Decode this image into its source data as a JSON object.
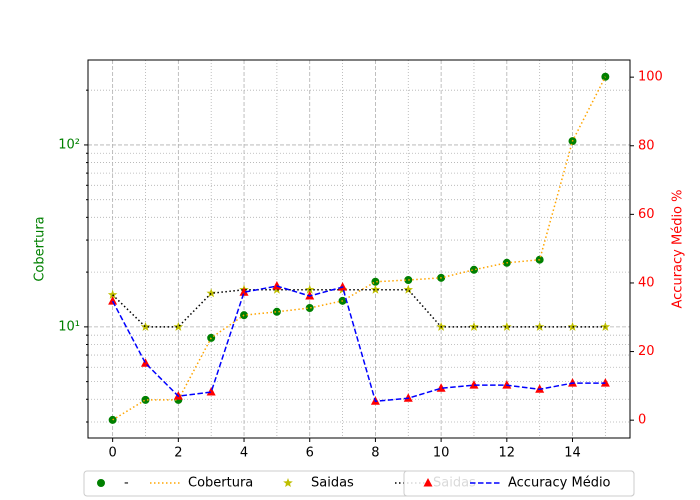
{
  "chart_data": {
    "type": "line",
    "x": [
      0,
      1,
      2,
      3,
      4,
      5,
      6,
      7,
      8,
      9,
      10,
      11,
      12,
      13,
      14,
      15
    ],
    "xlim": [
      -0.75,
      15.75
    ],
    "xticks": [
      0,
      2,
      4,
      6,
      8,
      10,
      12,
      14
    ],
    "xminorticks": [
      1,
      3,
      5,
      7,
      9,
      11,
      13,
      15
    ],
    "ylim": [
      2.45,
      293
    ],
    "ylog": true,
    "yticks": [
      {
        "value": 10,
        "label": "10¹"
      },
      {
        "value": 100,
        "label": "10²"
      }
    ],
    "yminorticks": [
      3,
      4,
      5,
      6,
      7,
      8,
      9,
      20,
      30,
      40,
      50,
      60,
      70,
      80,
      90,
      200
    ],
    "ylabel": "Cobertura",
    "ylabel_color": "#008000",
    "y2lim": [
      -5.2,
      105
    ],
    "y2ticks": [
      0,
      20,
      40,
      60,
      80,
      100
    ],
    "y2label": "Accuracy Médio %",
    "y2label_color": "#ff0000",
    "grid": true,
    "series": [
      {
        "name": "-",
        "color": "#008000",
        "marker": "o",
        "line": "none",
        "values": [
          3.08,
          3.97,
          3.97,
          8.7,
          11.6,
          12.1,
          12.7,
          13.9,
          17.7,
          18.1,
          18.6,
          20.6,
          22.5,
          23.4,
          105,
          237
        ]
      },
      {
        "name": "Cobertura",
        "color": "#ffa500",
        "marker": "none",
        "line": "dotted",
        "values": [
          3.08,
          3.97,
          3.97,
          8.7,
          11.6,
          12.1,
          12.7,
          13.9,
          17.7,
          18.1,
          18.6,
          20.6,
          22.5,
          23.4,
          105,
          237
        ]
      },
      {
        "name": "Saidas",
        "color": "#bfbf00",
        "marker": "*",
        "line": "none",
        "values": [
          15,
          10,
          10,
          15.3,
          16,
          16,
          16,
          16,
          16,
          16,
          10,
          10,
          10,
          10,
          10,
          10
        ]
      },
      {
        "name": "Saidas",
        "color": "#000000",
        "marker": "none",
        "line": "dotted",
        "values": [
          15,
          10,
          10,
          15.3,
          16,
          16,
          16,
          16,
          16,
          16,
          10,
          10,
          10,
          10,
          10,
          10
        ]
      },
      {
        "color": "#ff0000",
        "marker": "^",
        "line": "none",
        "axis": "y2",
        "values": [
          34.7,
          16.6,
          7.0,
          8.2,
          37.3,
          39.1,
          36.2,
          38.8,
          5.5,
          6.4,
          9.3,
          10.2,
          10.2,
          9.0,
          10.8,
          10.8
        ]
      },
      {
        "name": "Accuracy Médio",
        "color": "#0000ff",
        "marker": "none",
        "line": "dashed",
        "axis": "y2",
        "values": [
          34.7,
          16.6,
          7.0,
          8.2,
          37.3,
          39.1,
          36.2,
          38.8,
          5.5,
          6.4,
          9.3,
          10.2,
          10.2,
          9.0,
          10.8,
          10.8
        ]
      }
    ]
  }
}
